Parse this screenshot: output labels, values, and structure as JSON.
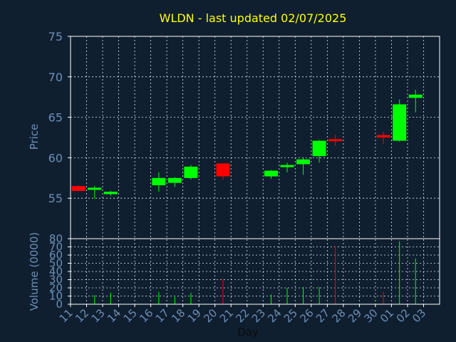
{
  "chart_data": {
    "type": "candlestick",
    "title": "WLDN - last updated 02/07/2025",
    "xlabel": "Day",
    "price_axis": {
      "ylabel": "Price",
      "ylim": [
        50,
        75
      ],
      "ticks": [
        55,
        60,
        65,
        70,
        75
      ]
    },
    "volume_axis": {
      "ylabel": "Volume (0000)",
      "ylim": [
        0,
        80
      ],
      "ticks": [
        0,
        10,
        20,
        30,
        40,
        50,
        60,
        70,
        80
      ]
    },
    "grid": true,
    "x_tick_labels": [
      "11",
      "12",
      "13",
      "14",
      "15",
      "16",
      "17",
      "18",
      "19",
      "20",
      "21",
      "22",
      "23",
      "24",
      "25",
      "26",
      "27",
      "28",
      "29",
      "30",
      "01",
      "02",
      "03"
    ],
    "colors": {
      "up": "#00ff00",
      "down": "#ff0000",
      "background": "#0f1f30",
      "title": "#ffff00",
      "axis_text": "#6d8fb5",
      "grid": "#dfe6ee"
    },
    "candles": [
      {
        "day": "11",
        "open": 56.5,
        "high": 56.6,
        "low": 55.9,
        "close": 55.9,
        "volume": 0
      },
      {
        "day": "12",
        "open": 56.1,
        "high": 56.5,
        "low": 55.0,
        "close": 56.3,
        "volume": 11
      },
      {
        "day": "13",
        "open": 55.5,
        "high": 55.9,
        "low": 55.3,
        "close": 55.8,
        "volume": 14
      },
      {
        "day": "16",
        "open": 56.6,
        "high": 58.2,
        "low": 55.8,
        "close": 57.5,
        "volume": 15
      },
      {
        "day": "17",
        "open": 56.9,
        "high": 57.6,
        "low": 56.4,
        "close": 57.5,
        "volume": 9
      },
      {
        "day": "18",
        "open": 57.5,
        "high": 59.1,
        "low": 57.3,
        "close": 58.9,
        "volume": 14
      },
      {
        "day": "20",
        "open": 59.3,
        "high": 59.3,
        "low": 57.3,
        "close": 57.7,
        "volume": 31
      },
      {
        "day": "23",
        "open": 57.7,
        "high": 58.5,
        "low": 57.4,
        "close": 58.4,
        "volume": 12
      },
      {
        "day": "24",
        "open": 58.9,
        "high": 59.4,
        "low": 58.2,
        "close": 59.1,
        "volume": 20
      },
      {
        "day": "25",
        "open": 59.2,
        "high": 60.0,
        "low": 57.9,
        "close": 59.8,
        "volume": 21
      },
      {
        "day": "26",
        "open": 60.2,
        "high": 62.2,
        "low": 59.4,
        "close": 62.1,
        "volume": 21
      },
      {
        "day": "27",
        "open": 62.3,
        "high": 62.8,
        "low": 61.5,
        "close": 62.2,
        "volume": 71
      },
      {
        "day": "30",
        "open": 62.8,
        "high": 63.2,
        "low": 61.7,
        "close": 62.5,
        "volume": 15
      },
      {
        "day": "01",
        "open": 62.1,
        "high": 67.2,
        "low": 62.0,
        "close": 66.6,
        "volume": 77
      },
      {
        "day": "02",
        "open": 67.4,
        "high": 68.4,
        "low": 65.6,
        "close": 67.8,
        "volume": 56
      }
    ]
  }
}
